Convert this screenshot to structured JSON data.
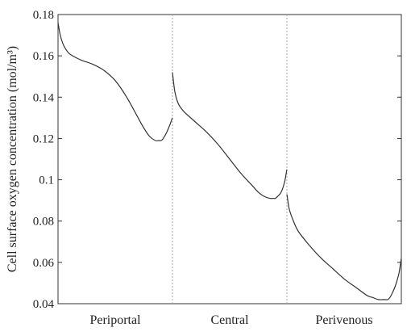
{
  "chart_data": {
    "type": "line",
    "title": "",
    "xlabel": "",
    "ylabel": "Cell surface oxygen concentration (mol/m³)",
    "ylim": [
      0.04,
      0.18
    ],
    "yticks": [
      0.04,
      0.06,
      0.08,
      0.1,
      0.12,
      0.14,
      0.16,
      0.18
    ],
    "ytick_labels": [
      "0.04",
      "0.06",
      "0.08",
      "0.1",
      "0.12",
      "0.14",
      "0.16",
      "0.18"
    ],
    "xlim": [
      0,
      3
    ],
    "categories": [
      "Periportal",
      "Central",
      "Perivenous"
    ],
    "category_centers": [
      0.5,
      1.5,
      2.5
    ],
    "zone_boundaries": [
      1,
      2
    ],
    "grid": false,
    "line_color": "#333333",
    "boundary_color": "#aaaaaa",
    "series": [
      {
        "x": [
          0.0,
          0.02,
          0.05,
          0.1,
          0.2,
          0.3,
          0.4,
          0.5,
          0.6,
          0.7,
          0.75,
          0.8,
          0.85,
          0.88,
          0.9,
          0.92,
          0.95,
          0.98,
          1.0
        ],
        "y": [
          0.176,
          0.17,
          0.165,
          0.161,
          0.158,
          0.156,
          0.153,
          0.148,
          0.14,
          0.13,
          0.125,
          0.121,
          0.119,
          0.119,
          0.119,
          0.12,
          0.123,
          0.127,
          0.13
        ]
      },
      {
        "x": [
          1.0,
          1.02,
          1.05,
          1.1,
          1.2,
          1.3,
          1.4,
          1.5,
          1.6,
          1.7,
          1.75,
          1.8,
          1.85,
          1.88,
          1.9,
          1.92,
          1.95,
          1.98,
          2.0
        ],
        "y": [
          0.152,
          0.143,
          0.137,
          0.133,
          0.128,
          0.123,
          0.117,
          0.11,
          0.103,
          0.097,
          0.094,
          0.092,
          0.091,
          0.091,
          0.091,
          0.092,
          0.094,
          0.099,
          0.105
        ]
      },
      {
        "x": [
          2.0,
          2.02,
          2.05,
          2.1,
          2.2,
          2.3,
          2.4,
          2.5,
          2.6,
          2.7,
          2.75,
          2.8,
          2.85,
          2.88,
          2.9,
          2.92,
          2.95,
          2.98,
          3.0
        ],
        "y": [
          0.093,
          0.086,
          0.081,
          0.075,
          0.068,
          0.062,
          0.057,
          0.052,
          0.048,
          0.044,
          0.043,
          0.042,
          0.042,
          0.042,
          0.043,
          0.045,
          0.049,
          0.055,
          0.062
        ]
      }
    ]
  }
}
